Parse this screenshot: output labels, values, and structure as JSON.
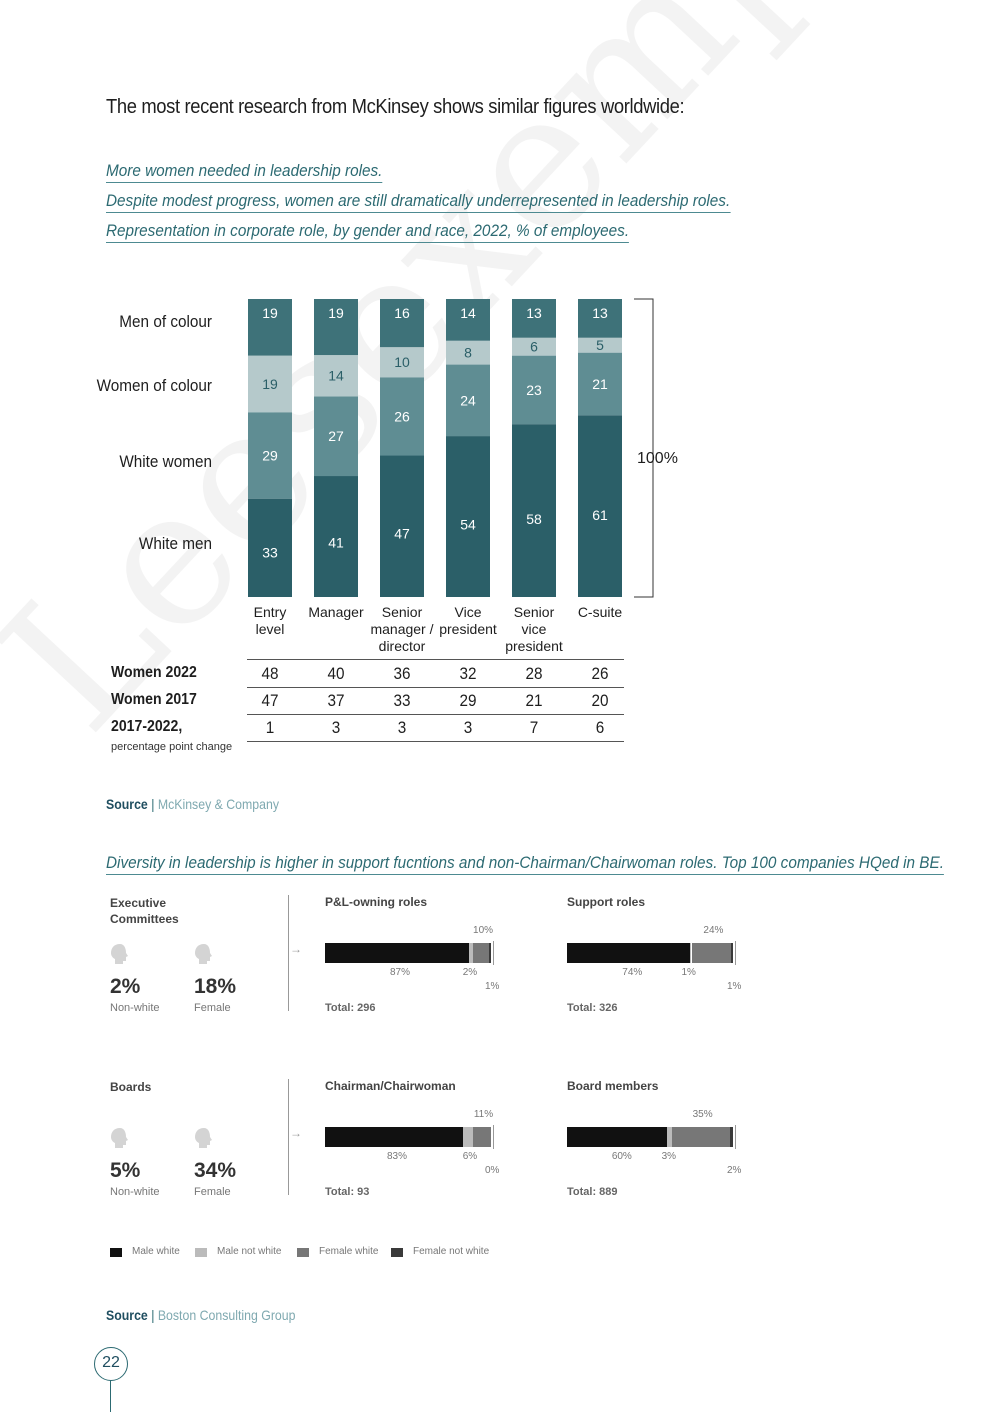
{
  "intro_text": "The most recent research from McKinsey shows similar figures worldwide:",
  "subtitles": [
    "More women needed in leadership roles.",
    "Despite modest progress, women are still dramatically underrepresented in leadership roles.",
    "Representation in corporate role, by gender and race, 2022, % of employees."
  ],
  "chart_data": [
    {
      "type": "bar",
      "stacked": true,
      "categories": [
        "Entry level",
        "Manager",
        "Senior manager / director",
        "Vice president",
        "Senior vice president",
        "C-suite"
      ],
      "category_lines": [
        [
          "Entry",
          "level"
        ],
        [
          "Manager"
        ],
        [
          "Senior",
          "manager /",
          "director"
        ],
        [
          "Vice",
          "president"
        ],
        [
          "Senior",
          "vice",
          "president"
        ],
        [
          "C-suite"
        ]
      ],
      "series": [
        {
          "name": "White men",
          "values": [
            33,
            41,
            47,
            54,
            58,
            61
          ],
          "color": "#2b5f68"
        },
        {
          "name": "White women",
          "values": [
            29,
            27,
            26,
            24,
            23,
            21
          ],
          "color": "#5f8d93"
        },
        {
          "name": "Women of colour",
          "values": [
            19,
            14,
            10,
            8,
            6,
            5
          ],
          "color": "#b5c9cb"
        },
        {
          "name": "Men of colour",
          "values": [
            19,
            19,
            16,
            14,
            13,
            13
          ],
          "color": "#3e7279"
        }
      ],
      "bracket_label": "100%",
      "table": {
        "rows": [
          {
            "label": "Women 2022",
            "values": [
              "48",
              "40",
              "36",
              "32",
              "28",
              "26"
            ]
          },
          {
            "label": "Women 2017",
            "values": [
              "47",
              "37",
              "33",
              "29",
              "21",
              "20"
            ]
          },
          {
            "label": "2017-2022,",
            "sublabel": "percentage point change",
            "values": [
              "1",
              "3",
              "3",
              "3",
              "7",
              "6"
            ]
          }
        ]
      }
    },
    {
      "type": "bar",
      "stacked": true,
      "orientation": "horizontal",
      "title": "Diversity in leadership is higher in support fucntions and non-Chairman/Chairwoman roles. Top 100 companies HQed in BE.",
      "series_names": [
        "Male white",
        "Male not white",
        "Female white",
        "Female not white"
      ],
      "colors": [
        "#111111",
        "#bbbbbb",
        "#777777",
        "#3a3a3a"
      ],
      "groups": [
        {
          "name": "Executive Committees",
          "stats": [
            {
              "value": "2%",
              "label": "Non-white"
            },
            {
              "value": "18%",
              "label": "Female"
            }
          ],
          "bars": [
            {
              "title": "P&L-owning roles",
              "values": [
                87,
                2,
                10,
                1
              ],
              "total": "Total: 296",
              "labels": {
                "main": "87%",
                "second": "2%",
                "third": "10%",
                "fourth": "1%"
              }
            },
            {
              "title": "Support roles",
              "values": [
                74,
                1,
                24,
                1
              ],
              "total": "Total: 326",
              "labels": {
                "main": "74%",
                "second": "1%",
                "third": "24%",
                "fourth": "1%"
              }
            }
          ]
        },
        {
          "name": "Boards",
          "stats": [
            {
              "value": "5%",
              "label": "Non-white"
            },
            {
              "value": "34%",
              "label": "Female"
            }
          ],
          "bars": [
            {
              "title": "Chairman/Chairwoman",
              "values": [
                83,
                6,
                11,
                0
              ],
              "total": "Total: 93",
              "labels": {
                "main": "83%",
                "second": "6%",
                "third": "11%",
                "fourth": "0%"
              }
            },
            {
              "title": "Board members",
              "values": [
                60,
                3,
                35,
                2
              ],
              "total": "Total: 889",
              "labels": {
                "main": "60%",
                "second": "3%",
                "third": "35%",
                "fourth": "2%"
              }
            }
          ]
        }
      ]
    }
  ],
  "source1": {
    "label": "Source",
    "sep": " | ",
    "value": "McKinsey & Company"
  },
  "source2": {
    "label": "Source",
    "sep": " | ",
    "value": "Boston Consulting Group"
  },
  "page_number": "22",
  "watermark": "Leesexemplaar"
}
